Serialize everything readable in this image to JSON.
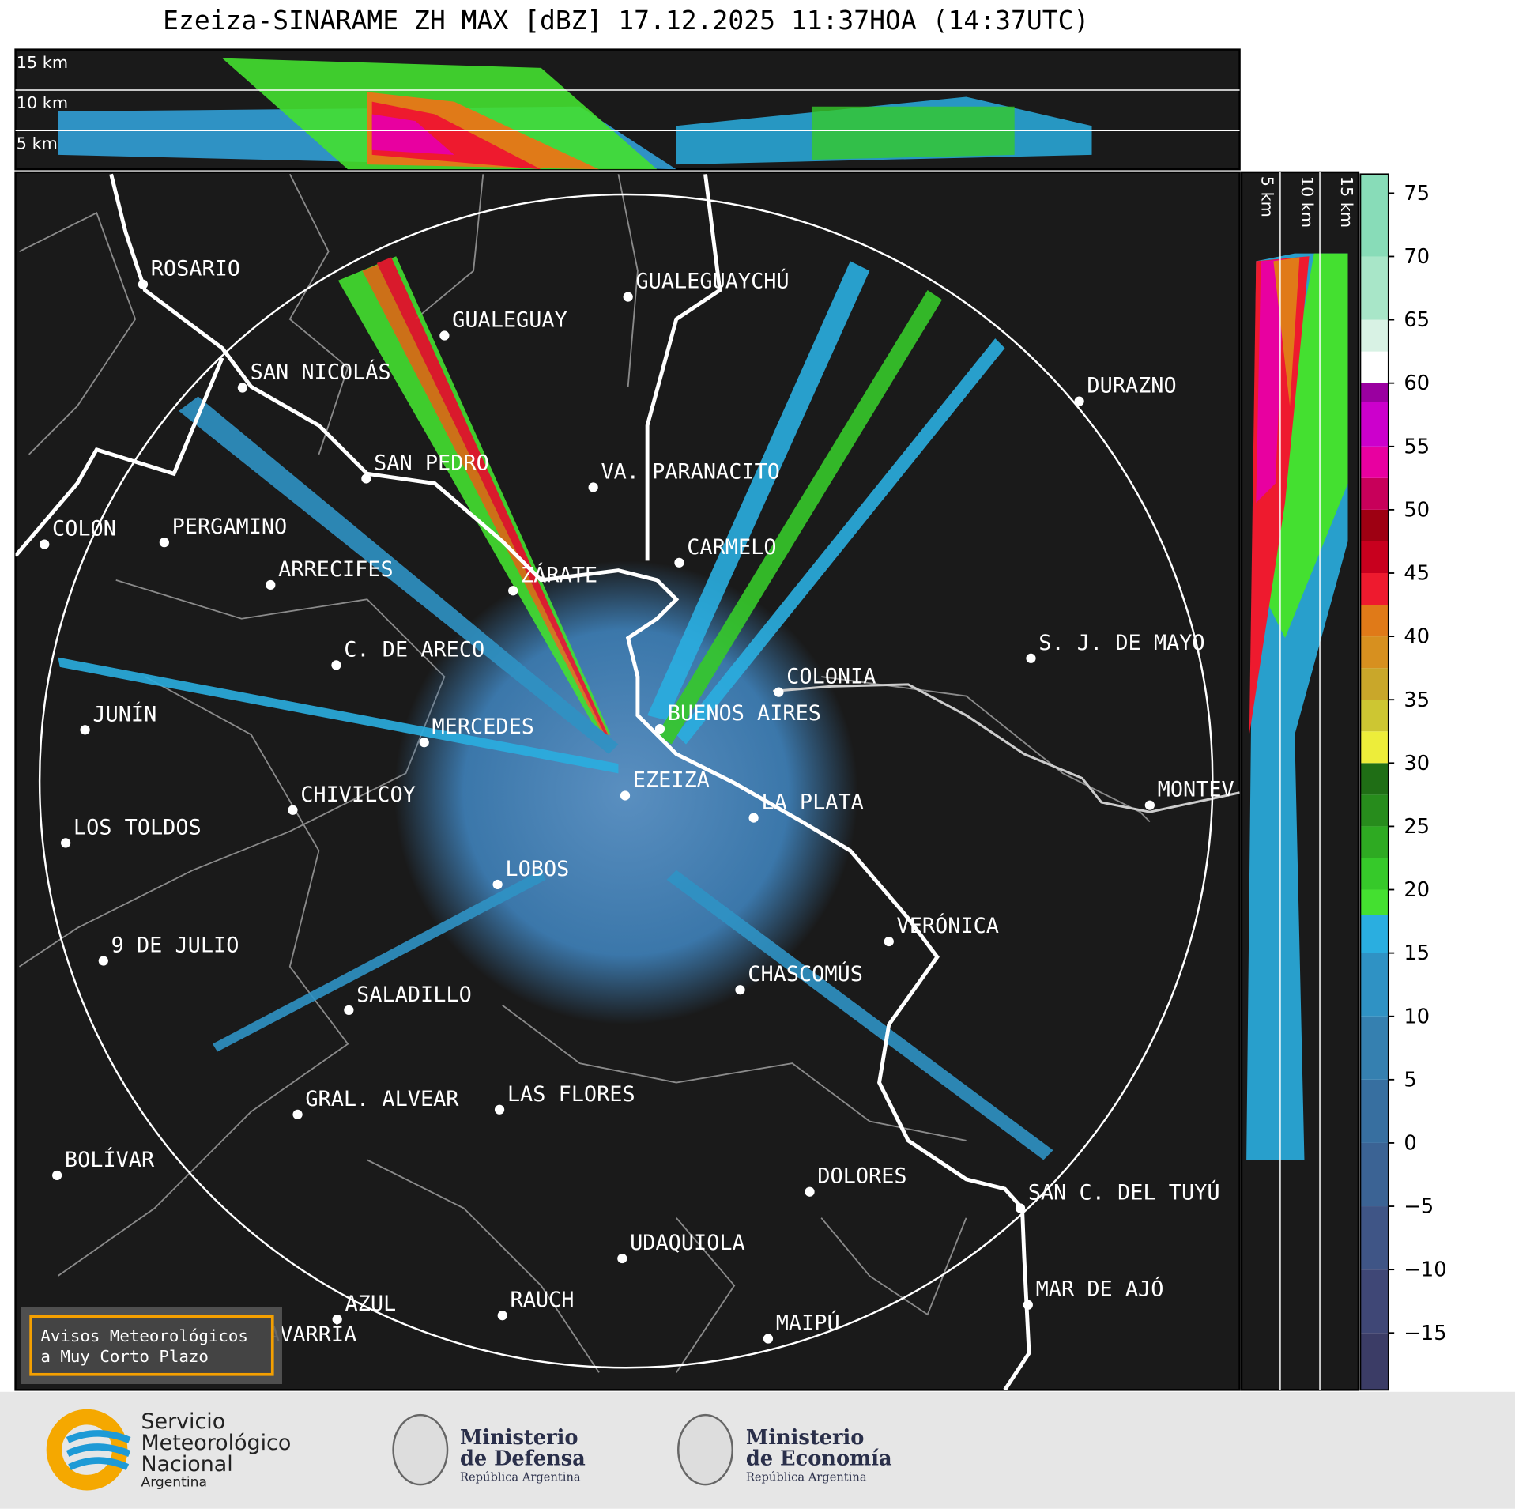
{
  "title": "Ezeiza-SINARAME ZH MAX [dBZ] 17.12.2025 11:37HOA (14:37UTC)",
  "top_section": {
    "height_labels": [
      "15 km",
      "10 km",
      "5 km"
    ]
  },
  "right_section": {
    "height_labels": [
      "5 km",
      "10 km",
      "15 km"
    ]
  },
  "map": {
    "places": [
      "ROSARIO",
      "GUALEGUAYCHÚ",
      "GUALEGUAY",
      "SAN NICOLÁS",
      "DURAZNO",
      "SAN PEDRO",
      "VA. PARANACITO",
      "COLON",
      "PERGAMINO",
      "CARMELO",
      "ARRECIFES",
      "ZÁRATE",
      "C. DE ARECO",
      "S. J. DE MAYO",
      "COLONIA",
      "JUNÍN",
      "BUENOS AIRES",
      "MERCEDES",
      "EZEIZA",
      "MONTEV",
      "CHIVILCOY",
      "LA PLATA",
      "LOS TOLDOS",
      "LOBOS",
      "VERÓNICA",
      "9 DE JULIO",
      "CHASCOMÚS",
      "SALADILLO",
      "GRAL. ALVEAR",
      "LAS FLORES",
      "BOLÍVAR",
      "DOLORES",
      "SAN C. DEL TUYÚ",
      "UDAQUIOLA",
      "MAR DE AJÓ",
      "AZUL",
      "RAUCH",
      "OLAVARRÍA",
      "MAIPÚ"
    ]
  },
  "colorbar": {
    "range": [
      -19.5,
      76.5
    ],
    "bounds": [
      -19.5,
      -15,
      -10,
      -5,
      0,
      5,
      10,
      15,
      18,
      20,
      22.5,
      25,
      27.5,
      30,
      32.5,
      35,
      37.5,
      40,
      42.5,
      45,
      47.5,
      50,
      52.5,
      55,
      58.5,
      60,
      62.5,
      65,
      70,
      76.5
    ],
    "colors": [
      "#3b3c66",
      "#3f4776",
      "#3f5586",
      "#3b6394",
      "#376fa0",
      "#3580b0",
      "#2f92c4",
      "#2aaee0",
      "#44e030",
      "#36c92a",
      "#2eaa22",
      "#278c1c",
      "#1f6e15",
      "#eded3a",
      "#cdc632",
      "#c9a72a",
      "#d7901f",
      "#e07a18",
      "#ee1a2e",
      "#c8001e",
      "#9e0012",
      "#c8005a",
      "#e800a0",
      "#cc00cc",
      "#9a00a0",
      "#ffffff",
      "#d8f2e4",
      "#a8e6c8",
      "#88dcb8"
    ],
    "ticks": [
      75,
      70,
      65,
      60,
      55,
      50,
      45,
      40,
      35,
      30,
      25,
      20,
      15,
      10,
      5,
      0,
      {
        "value": -5,
        "label": "−5"
      },
      {
        "value": -10,
        "label": "−10"
      },
      {
        "value": -15,
        "label": "−15"
      }
    ]
  },
  "notice": {
    "lines": [
      "Avisos Meteorológicos",
      "a Muy Corto Plazo"
    ]
  },
  "logos": {
    "smn": [
      "Servicio",
      "Meteorológico",
      "Nacional",
      "Argentina"
    ],
    "defensa": [
      "Ministerio",
      "de Defensa",
      "República Argentina"
    ],
    "economia": [
      "Ministerio",
      "de Economía",
      "República Argentina"
    ]
  }
}
